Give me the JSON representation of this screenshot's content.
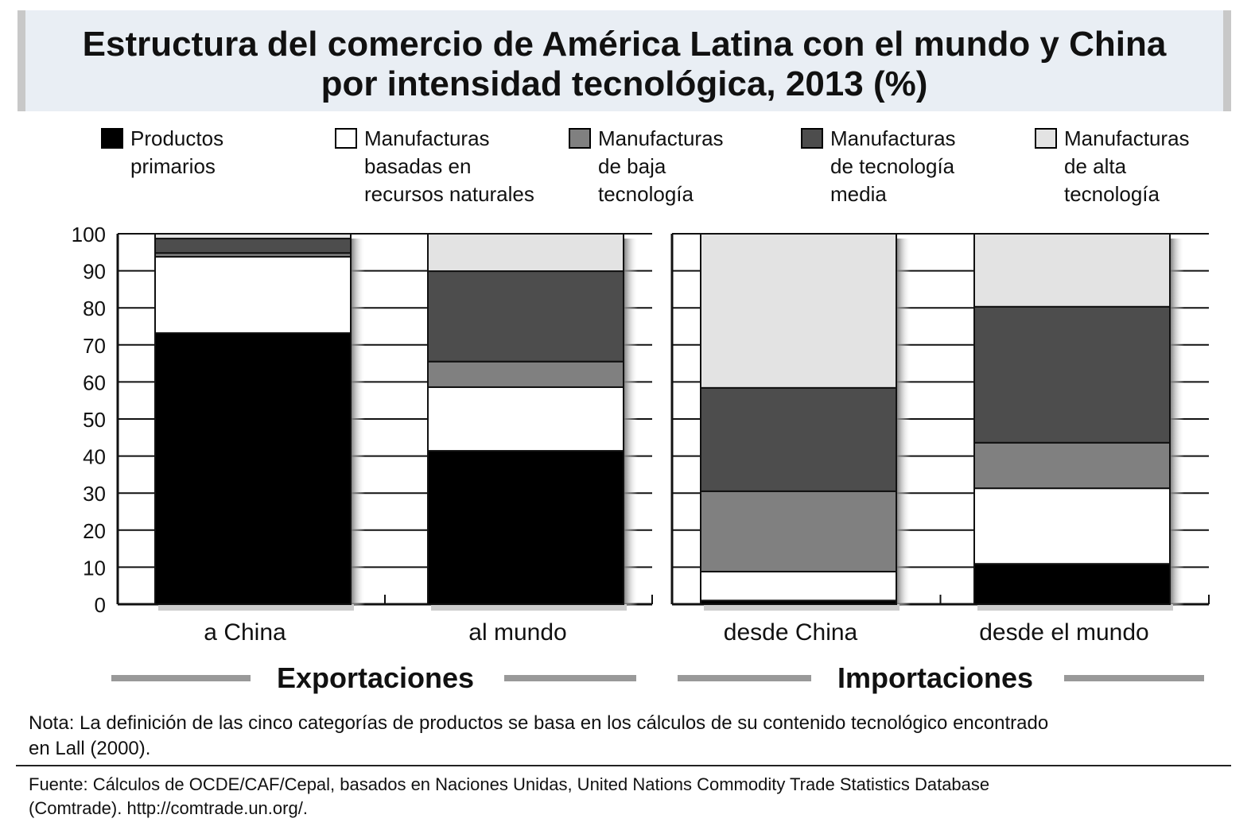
{
  "chart_data": {
    "type": "bar",
    "stacked": true,
    "title": "Estructura del comercio de América Latina con el mundo y China",
    "title_line2": "por intensidad tecnológica, 2013 (%)",
    "categories": [
      "a China",
      "al mundo",
      "desde China",
      "desde el mundo"
    ],
    "groups": [
      {
        "label": "Exportaciones",
        "categories": [
          "a China",
          "al mundo"
        ]
      },
      {
        "label": "Importaciones",
        "categories": [
          "desde China",
          "desde el mundo"
        ]
      }
    ],
    "series": [
      {
        "name": "Productos primarios",
        "name_lines": [
          "Productos",
          "primarios"
        ],
        "color": "#000000",
        "values": [
          73.2,
          41.4,
          1.0,
          10.9
        ]
      },
      {
        "name": "Manufacturas basadas en recursos naturales",
        "name_lines": [
          "Manufacturas",
          "basadas en",
          "recursos naturales"
        ],
        "color": "#ffffff",
        "values": [
          20.6,
          17.2,
          7.8,
          20.4
        ]
      },
      {
        "name": "Manufacturas de baja tecnología",
        "name_lines": [
          "Manufacturas",
          "de baja",
          "tecnología"
        ],
        "color": "#808080",
        "values": [
          1.0,
          6.9,
          21.7,
          12.3
        ]
      },
      {
        "name": "Manufacturas de tecnología media",
        "name_lines": [
          "Manufacturas",
          "de tecnología",
          "media"
        ],
        "color": "#4d4d4d",
        "values": [
          3.9,
          24.4,
          27.9,
          36.7
        ]
      },
      {
        "name": "Manufacturas de alta tecnología",
        "name_lines": [
          "Manufacturas",
          "de alta",
          "tecnología"
        ],
        "color": "#e3e3e3",
        "values": [
          1.3,
          10.1,
          41.6,
          19.7
        ]
      }
    ],
    "ylim": [
      0,
      100
    ],
    "yticks": [
      "0",
      "10",
      "20",
      "30",
      "40",
      "50",
      "60",
      "70",
      "80",
      "90",
      "100"
    ],
    "legend_position": "top",
    "grid": true
  },
  "note": [
    "Nota: La definición de las cinco categorías de productos se basa en los cálculos de su contenido tecnológico encontrado",
    "en Lall (2000)."
  ],
  "source": [
    "Fuente: Cálculos de OCDE/CAF/Cepal, basados en Naciones Unidas, United Nations Commodity Trade Statistics Database",
    "(Comtrade). http://comtrade.un.org/."
  ]
}
